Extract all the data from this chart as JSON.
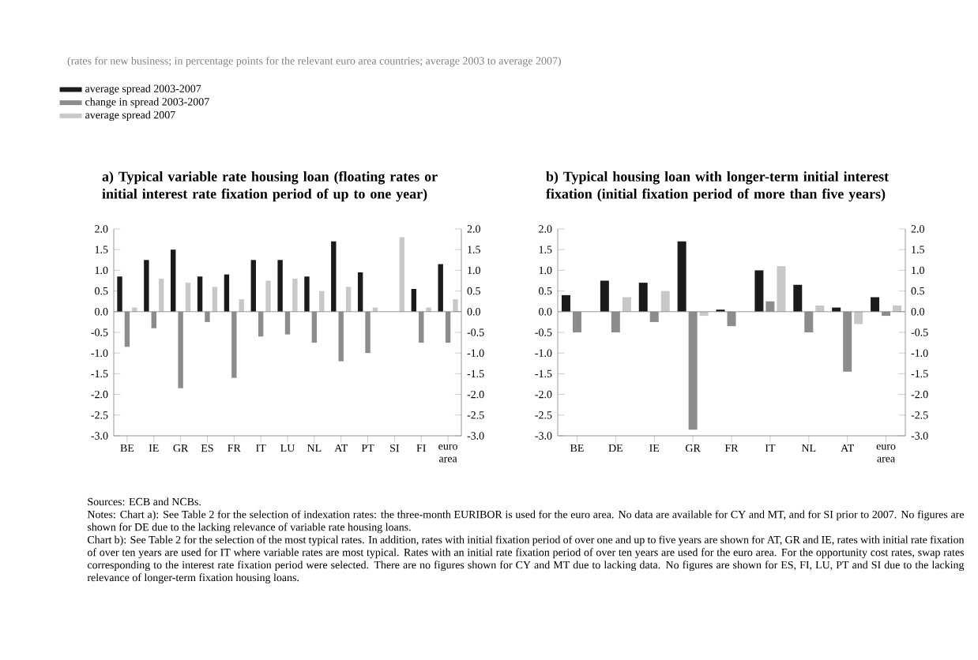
{
  "chart_data": [
    {
      "type": "bar",
      "subtitle": "(rates for new business; in percentage points for the relevant euro area countries; average 2003 to average 2007)",
      "title": "a) Typical variable rate housing loan (floating rates or initial interest rate fixation period of up to one year)",
      "categories": [
        "BE",
        "IE",
        "GR",
        "ES",
        "FR",
        "IT",
        "LU",
        "NL",
        "AT",
        "PT",
        "SI",
        "FI",
        "euro area"
      ],
      "series": [
        {
          "name": "average spread 2003-2007",
          "color": "#1a1a1a",
          "values": [
            0.85,
            1.25,
            1.5,
            0.85,
            0.9,
            1.25,
            1.25,
            0.85,
            1.7,
            0.95,
            null,
            0.55,
            1.15
          ]
        },
        {
          "name": "change in spread 2003-2007",
          "color": "#8c8c8c",
          "values": [
            -0.85,
            -0.4,
            -1.85,
            -0.25,
            -1.6,
            -0.6,
            -0.55,
            -0.75,
            -1.2,
            -1.0,
            null,
            -0.75,
            -0.75
          ]
        },
        {
          "name": "average spread 2007",
          "color": "#c8c8c8",
          "values": [
            0.1,
            0.8,
            0.7,
            0.6,
            0.3,
            0.75,
            0.8,
            0.5,
            0.6,
            0.1,
            1.8,
            0.1,
            0.3
          ]
        }
      ],
      "ylim": [
        -3.0,
        2.0
      ],
      "yticks": [
        {
          "value": -3.0,
          "label": "-3.0"
        },
        {
          "value": -2.5,
          "label": "-2.5"
        },
        {
          "value": -2.0,
          "label": "-2.0"
        },
        {
          "value": -1.5,
          "label": "-1.5"
        },
        {
          "value": -1.0,
          "label": "-1.0"
        },
        {
          "value": -0.5,
          "label": "-0.5"
        },
        {
          "value": 0.0,
          "label": "0.0"
        },
        {
          "value": 0.5,
          "label": "0.5"
        },
        {
          "value": 1.0,
          "label": "1.0"
        },
        {
          "value": 1.5,
          "label": "1.5"
        },
        {
          "value": 2.0,
          "label": "2.0"
        }
      ],
      "y2lim": [
        -3.0,
        2.0
      ],
      "y2ticks": [
        {
          "value": -3.0,
          "label": "-3.0"
        },
        {
          "value": -2.5,
          "label": "-2.5"
        },
        {
          "value": -2.0,
          "label": "-2.0"
        },
        {
          "value": -1.5,
          "label": "-1.5"
        },
        {
          "value": -1.0,
          "label": "-1.0"
        },
        {
          "value": -0.5,
          "label": "-0.5"
        },
        {
          "value": 0.0,
          "label": "0.0"
        },
        {
          "value": 0.5,
          "label": "0.5"
        },
        {
          "value": 1.0,
          "label": "1.0"
        },
        {
          "value": 1.5,
          "label": "1.5"
        },
        {
          "value": 2.0,
          "label": "2.0"
        }
      ],
      "legend": "top left",
      "annotations": [
        "Sources: ECB and NCBs.",
        "Notes: Chart a): See Table 2 for the selection of indexation rates: the three-month EURIBOR is used for the euro area. No data are available for CY and MT, and for SI prior to 2007. No figures are shown for DE due to the lacking relevance of variable rate housing loans.",
        "Chart b): See Table 2 for the selection of the most typical rates. In addition, rates with initial fixation period of over one and up to five years are shown for AT, GR and IE, rates with initial rate fixation of over ten years are used for IT where variable rates are most typical. Rates with an initial rate fixation period of over ten years are used for the euro area. For the opportunity cost rates, swap rates corresponding to the interest rate fixation period were selected. There are no figures shown for CY and MT due to lacking data. No figures are shown for ES, FI, LU, PT and SI due to the lacking relevance of longer-term fixation housing loans."
      ]
    },
    {
      "type": "bar",
      "title": "b) Typical housing loan with longer-term initial interest fixation (initial fixation period of more than five years)",
      "categories": [
        "BE",
        "DE",
        "IE",
        "GR",
        "FR",
        "IT",
        "NL",
        "AT",
        "euro area"
      ],
      "series": [
        {
          "color": "#1a1a1a",
          "values": [
            0.4,
            0.75,
            0.7,
            1.7,
            0.05,
            1.0,
            0.65,
            0.1,
            0.35
          ]
        },
        {
          "color": "#8c8c8c",
          "values": [
            -0.5,
            -0.5,
            -0.25,
            -2.85,
            -0.35,
            0.25,
            -0.5,
            -1.45,
            -0.1
          ]
        },
        {
          "color": "#c8c8c8",
          "values": [
            0.0,
            0.35,
            0.5,
            -0.1,
            0.0,
            1.1,
            0.15,
            -0.3,
            0.15
          ]
        }
      ],
      "ylim": [
        -3.0,
        2.0
      ],
      "yticks": [
        {
          "value": -3.0,
          "label": "-3.0"
        },
        {
          "value": -2.5,
          "label": "-2.5"
        },
        {
          "value": -2.0,
          "label": "-2.0"
        },
        {
          "value": -1.5,
          "label": "-1.5"
        },
        {
          "value": -1.0,
          "label": "-1.0"
        },
        {
          "value": -0.5,
          "label": "-0.5"
        },
        {
          "value": 0.0,
          "label": "0.0"
        },
        {
          "value": 0.5,
          "label": "0.5"
        },
        {
          "value": 1.0,
          "label": "1.0"
        },
        {
          "value": 1.5,
          "label": "1.5"
        },
        {
          "value": 2.0,
          "label": "2.0"
        }
      ],
      "y2lim": [
        -3.0,
        2.0
      ],
      "y2ticks": [
        {
          "value": -3.0,
          "label": "-3.0"
        },
        {
          "value": -2.5,
          "label": "-2.5"
        },
        {
          "value": -2.0,
          "label": "-2.0"
        },
        {
          "value": -1.5,
          "label": "-1.5"
        },
        {
          "value": -1.0,
          "label": "-1.0"
        },
        {
          "value": -0.5,
          "label": "-0.5"
        },
        {
          "value": 0.0,
          "label": "0.0"
        },
        {
          "value": 0.5,
          "label": "0.5"
        },
        {
          "value": 1.0,
          "label": "1.0"
        },
        {
          "value": 1.5,
          "label": "1.5"
        },
        {
          "value": 2.0,
          "label": "2.0"
        }
      ]
    }
  ]
}
